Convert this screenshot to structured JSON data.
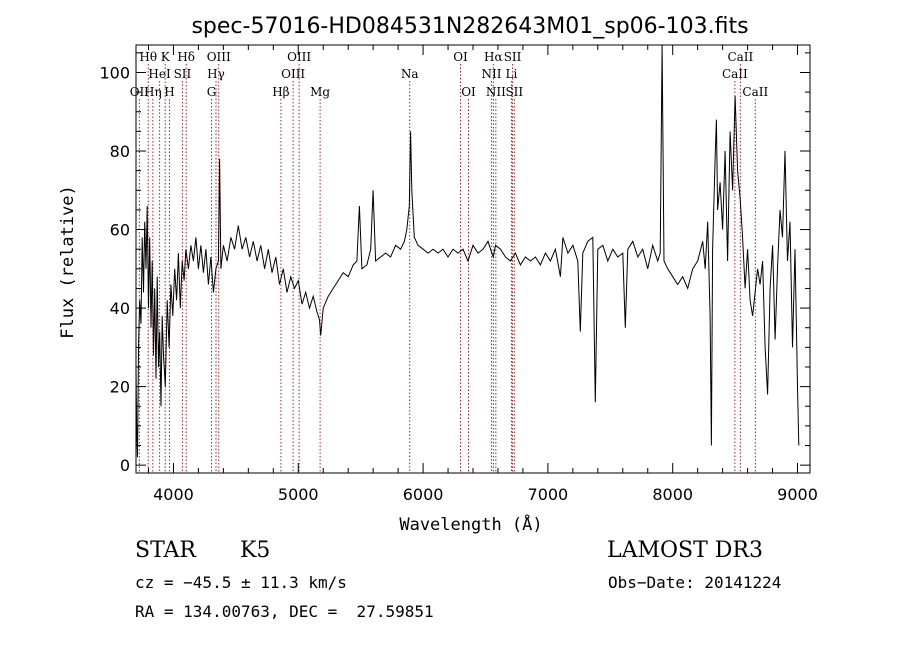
{
  "chart_data": {
    "type": "line",
    "title": "spec-57016-HD084531N282643M01_sp06-103.fits",
    "xlabel": "Wavelength (Å)",
    "ylabel": "Flux (relative)",
    "xlim": [
      3700,
      9100
    ],
    "ylim": [
      -2,
      107
    ],
    "xticks": [
      4000,
      5000,
      6000,
      7000,
      8000,
      9000
    ],
    "yticks": [
      0,
      20,
      40,
      60,
      80,
      100
    ],
    "grid": false,
    "line_color": "#000000",
    "marker_color": "#b22222",
    "series": [
      {
        "values": [
          [
            3700,
            25
          ],
          [
            3705,
            10
          ],
          [
            3712,
            2
          ],
          [
            3720,
            30
          ],
          [
            3730,
            42
          ],
          [
            3740,
            36
          ],
          [
            3750,
            58
          ],
          [
            3760,
            44
          ],
          [
            3770,
            62
          ],
          [
            3780,
            50
          ],
          [
            3790,
            66
          ],
          [
            3800,
            40
          ],
          [
            3810,
            58
          ],
          [
            3820,
            35
          ],
          [
            3830,
            52
          ],
          [
            3840,
            28
          ],
          [
            3850,
            45
          ],
          [
            3860,
            22
          ],
          [
            3870,
            48
          ],
          [
            3880,
            25
          ],
          [
            3890,
            34
          ],
          [
            3900,
            15
          ],
          [
            3910,
            38
          ],
          [
            3920,
            28
          ],
          [
            3935,
            20
          ],
          [
            3950,
            42
          ],
          [
            3965,
            30
          ],
          [
            3980,
            46
          ],
          [
            3995,
            38
          ],
          [
            4010,
            50
          ],
          [
            4025,
            42
          ],
          [
            4040,
            54
          ],
          [
            4055,
            40
          ],
          [
            4070,
            52
          ],
          [
            4085,
            47
          ],
          [
            4100,
            55
          ],
          [
            4120,
            50
          ],
          [
            4140,
            56
          ],
          [
            4160,
            52
          ],
          [
            4180,
            58
          ],
          [
            4200,
            50
          ],
          [
            4220,
            56
          ],
          [
            4240,
            49
          ],
          [
            4260,
            55
          ],
          [
            4280,
            46
          ],
          [
            4300,
            53
          ],
          [
            4320,
            44
          ],
          [
            4340,
            50
          ],
          [
            4360,
            52
          ],
          [
            4370,
            78
          ],
          [
            4380,
            50
          ],
          [
            4400,
            56
          ],
          [
            4430,
            52
          ],
          [
            4460,
            58
          ],
          [
            4490,
            55
          ],
          [
            4520,
            61
          ],
          [
            4550,
            55
          ],
          [
            4580,
            58
          ],
          [
            4610,
            53
          ],
          [
            4640,
            57
          ],
          [
            4670,
            52
          ],
          [
            4700,
            56
          ],
          [
            4730,
            50
          ],
          [
            4760,
            55
          ],
          [
            4790,
            49
          ],
          [
            4820,
            53
          ],
          [
            4850,
            46
          ],
          [
            4880,
            50
          ],
          [
            4910,
            44
          ],
          [
            4940,
            48
          ],
          [
            4970,
            45
          ],
          [
            5000,
            47
          ],
          [
            5030,
            41
          ],
          [
            5060,
            44
          ],
          [
            5090,
            40
          ],
          [
            5120,
            43
          ],
          [
            5150,
            39
          ],
          [
            5170,
            37
          ],
          [
            5180,
            33
          ],
          [
            5200,
            40
          ],
          [
            5240,
            43
          ],
          [
            5280,
            45
          ],
          [
            5320,
            47
          ],
          [
            5360,
            49
          ],
          [
            5400,
            48
          ],
          [
            5440,
            51
          ],
          [
            5470,
            52
          ],
          [
            5490,
            66
          ],
          [
            5510,
            50
          ],
          [
            5550,
            51
          ],
          [
            5580,
            55
          ],
          [
            5600,
            70
          ],
          [
            5620,
            52
          ],
          [
            5660,
            53
          ],
          [
            5700,
            54
          ],
          [
            5740,
            53
          ],
          [
            5780,
            56
          ],
          [
            5820,
            55
          ],
          [
            5850,
            57
          ],
          [
            5870,
            60
          ],
          [
            5890,
            66
          ],
          [
            5900,
            85
          ],
          [
            5910,
            70
          ],
          [
            5930,
            58
          ],
          [
            5960,
            56
          ],
          [
            6000,
            55
          ],
          [
            6040,
            54
          ],
          [
            6080,
            55
          ],
          [
            6120,
            54
          ],
          [
            6160,
            55
          ],
          [
            6200,
            53
          ],
          [
            6240,
            55
          ],
          [
            6280,
            54
          ],
          [
            6320,
            55
          ],
          [
            6360,
            52
          ],
          [
            6400,
            56
          ],
          [
            6440,
            54
          ],
          [
            6480,
            55
          ],
          [
            6520,
            57
          ],
          [
            6540,
            55
          ],
          [
            6563,
            53
          ],
          [
            6580,
            56
          ],
          [
            6620,
            55
          ],
          [
            6660,
            53
          ],
          [
            6700,
            52
          ],
          [
            6740,
            54
          ],
          [
            6780,
            51
          ],
          [
            6820,
            53
          ],
          [
            6860,
            52
          ],
          [
            6900,
            53
          ],
          [
            6940,
            51
          ],
          [
            6980,
            54
          ],
          [
            7020,
            52
          ],
          [
            7060,
            55
          ],
          [
            7100,
            48
          ],
          [
            7120,
            58
          ],
          [
            7160,
            54
          ],
          [
            7200,
            56
          ],
          [
            7240,
            52
          ],
          [
            7260,
            34
          ],
          [
            7280,
            54
          ],
          [
            7320,
            57
          ],
          [
            7360,
            58
          ],
          [
            7380,
            16
          ],
          [
            7400,
            55
          ],
          [
            7440,
            56
          ],
          [
            7480,
            52
          ],
          [
            7520,
            55
          ],
          [
            7560,
            53
          ],
          [
            7600,
            54
          ],
          [
            7620,
            35
          ],
          [
            7640,
            55
          ],
          [
            7680,
            57
          ],
          [
            7720,
            53
          ],
          [
            7760,
            55
          ],
          [
            7800,
            50
          ],
          [
            7840,
            56
          ],
          [
            7880,
            52
          ],
          [
            7900,
            54
          ],
          [
            7915,
            107
          ],
          [
            7930,
            52
          ],
          [
            7960,
            50
          ],
          [
            8000,
            48
          ],
          [
            8040,
            46
          ],
          [
            8080,
            48
          ],
          [
            8120,
            45
          ],
          [
            8160,
            50
          ],
          [
            8200,
            52
          ],
          [
            8240,
            57
          ],
          [
            8260,
            50
          ],
          [
            8280,
            62
          ],
          [
            8300,
            38
          ],
          [
            8310,
            5
          ],
          [
            8320,
            55
          ],
          [
            8340,
            78
          ],
          [
            8350,
            88
          ],
          [
            8360,
            65
          ],
          [
            8380,
            72
          ],
          [
            8400,
            60
          ],
          [
            8420,
            80
          ],
          [
            8440,
            52
          ],
          [
            8460,
            85
          ],
          [
            8480,
            70
          ],
          [
            8500,
            94
          ],
          [
            8520,
            75
          ],
          [
            8540,
            68
          ],
          [
            8560,
            58
          ],
          [
            8580,
            45
          ],
          [
            8600,
            55
          ],
          [
            8620,
            42
          ],
          [
            8640,
            38
          ],
          [
            8660,
            44
          ],
          [
            8680,
            50
          ],
          [
            8700,
            46
          ],
          [
            8720,
            52
          ],
          [
            8740,
            30
          ],
          [
            8760,
            18
          ],
          [
            8780,
            45
          ],
          [
            8800,
            56
          ],
          [
            8820,
            32
          ],
          [
            8840,
            50
          ],
          [
            8860,
            65
          ],
          [
            8880,
            58
          ],
          [
            8900,
            80
          ],
          [
            8920,
            52
          ],
          [
            8940,
            62
          ],
          [
            8960,
            30
          ],
          [
            8980,
            55
          ],
          [
            9000,
            20
          ],
          [
            9010,
            5
          ]
        ]
      }
    ],
    "line_markers": [
      {
        "label": "Hθ",
        "x": 3798,
        "row": 1
      },
      {
        "label": "OII",
        "x": 3727,
        "row": 3
      },
      {
        "label": "Hη",
        "x": 3835,
        "row": 3
      },
      {
        "label": "HeI",
        "x": 3889,
        "row": 2
      },
      {
        "label": "K",
        "x": 3934,
        "row": 1
      },
      {
        "label": "H",
        "x": 3968,
        "row": 3
      },
      {
        "label": "SII",
        "x": 4072,
        "row": 2
      },
      {
        "label": "Hδ",
        "x": 4102,
        "row": 1
      },
      {
        "label": "G",
        "x": 4305,
        "row": 3
      },
      {
        "label": "Hγ",
        "x": 4341,
        "row": 2
      },
      {
        "label": "OIII",
        "x": 4363,
        "row": 1
      },
      {
        "label": "Hβ",
        "x": 4861,
        "row": 3
      },
      {
        "label": "OIII",
        "x": 4959,
        "row": 2
      },
      {
        "label": "OIII",
        "x": 5007,
        "row": 1
      },
      {
        "label": "Mg",
        "x": 5175,
        "row": 3
      },
      {
        "label": "Na",
        "x": 5893,
        "row": 2
      },
      {
        "label": "OI",
        "x": 6300,
        "row": 1
      },
      {
        "label": "OI",
        "x": 6364,
        "row": 3
      },
      {
        "label": "NII",
        "x": 6548,
        "row": 2
      },
      {
        "label": "Hα",
        "x": 6563,
        "row": 1
      },
      {
        "label": "NII",
        "x": 6583,
        "row": 3
      },
      {
        "label": "Li",
        "x": 6708,
        "row": 2
      },
      {
        "label": "SII",
        "x": 6717,
        "row": 1
      },
      {
        "label": "SII",
        "x": 6731,
        "row": 3
      },
      {
        "label": "CaII",
        "x": 8498,
        "row": 2
      },
      {
        "label": "CaII",
        "x": 8542,
        "row": 1
      },
      {
        "label": "CaII",
        "x": 8662,
        "row": 3
      }
    ]
  },
  "info": {
    "object_class": "STAR",
    "subclass": "K5",
    "survey": "LAMOST DR3",
    "cz": "cz = −45.5 ± 11.3 km/s",
    "obs_date": "Obs−Date: 20141224",
    "coords": "RA = 134.00763, DEC =  27.59851"
  }
}
